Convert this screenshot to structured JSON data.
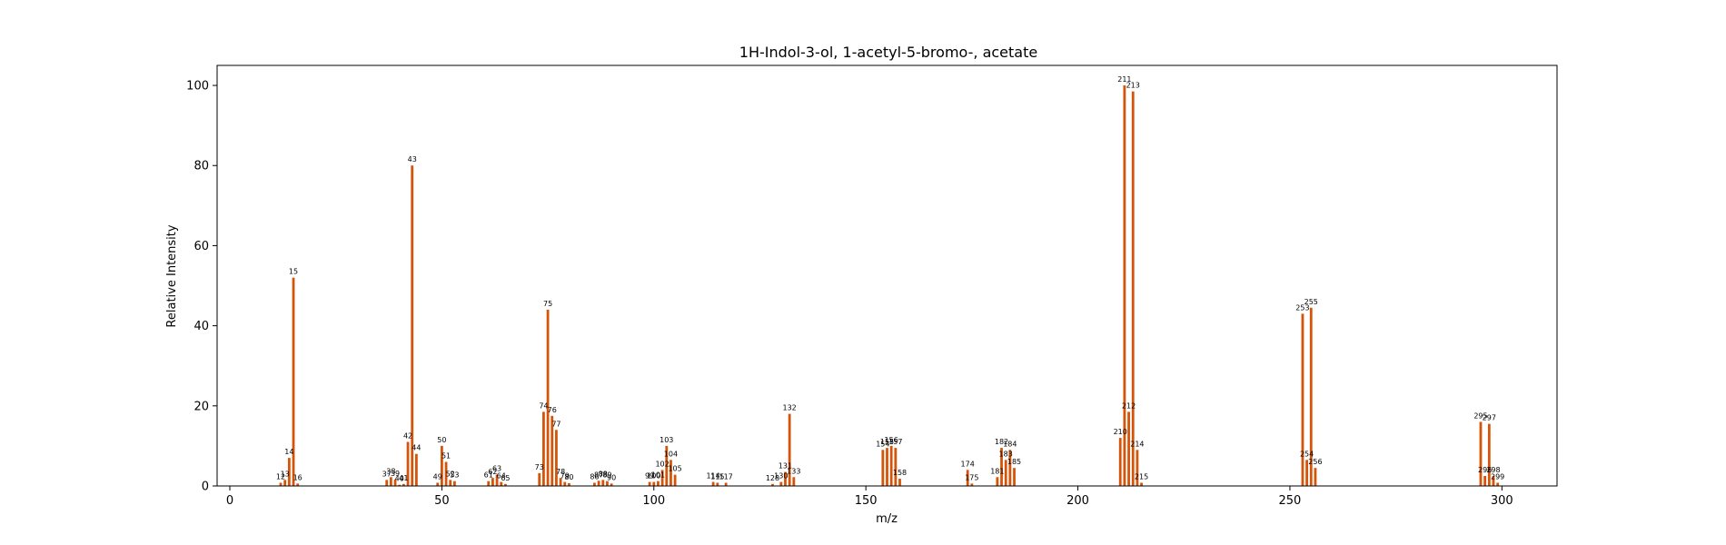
{
  "chart_data": {
    "type": "bar",
    "title": "1H-Indol-3-ol, 1-acetyl-5-bromo-, acetate",
    "xlabel": "m/z",
    "ylabel": "Relative Intensity",
    "xlim": [
      -3,
      313
    ],
    "ylim": [
      0,
      105
    ],
    "x_ticks": [
      0,
      50,
      100,
      150,
      200,
      250,
      300
    ],
    "y_ticks": [
      0,
      20,
      40,
      60,
      80,
      100
    ],
    "bar_color": "#d4550a",
    "grid": false,
    "peaks": [
      {
        "x": 12,
        "y": 0.8,
        "label": "12"
      },
      {
        "x": 13,
        "y": 1.5,
        "label": "13"
      },
      {
        "x": 14,
        "y": 7.0,
        "label": "14"
      },
      {
        "x": 15,
        "y": 52.0,
        "label": "15"
      },
      {
        "x": 16,
        "y": 0.6,
        "label": "16"
      },
      {
        "x": 37,
        "y": 1.5,
        "label": "37"
      },
      {
        "x": 38,
        "y": 2.2,
        "label": "38"
      },
      {
        "x": 39,
        "y": 1.6,
        "label": "39"
      },
      {
        "x": 40,
        "y": 0.3,
        "label": "40"
      },
      {
        "x": 41,
        "y": 0.5,
        "label": "41"
      },
      {
        "x": 42,
        "y": 11.0,
        "label": "42"
      },
      {
        "x": 43,
        "y": 80.0,
        "label": "43"
      },
      {
        "x": 44,
        "y": 8.0,
        "label": "44"
      },
      {
        "x": 49,
        "y": 0.8,
        "label": "49"
      },
      {
        "x": 50,
        "y": 10.0,
        "label": "50"
      },
      {
        "x": 51,
        "y": 6.0,
        "label": "51"
      },
      {
        "x": 52,
        "y": 1.5,
        "label": "52"
      },
      {
        "x": 53,
        "y": 1.2,
        "label": "53"
      },
      {
        "x": 61,
        "y": 1.2,
        "label": "61"
      },
      {
        "x": 62,
        "y": 2.0,
        "label": "62"
      },
      {
        "x": 63,
        "y": 2.8,
        "label": "63"
      },
      {
        "x": 64,
        "y": 1.0,
        "label": "64"
      },
      {
        "x": 65,
        "y": 0.5,
        "label": "65"
      },
      {
        "x": 73,
        "y": 3.2,
        "label": "73"
      },
      {
        "x": 74,
        "y": 18.5,
        "label": "74"
      },
      {
        "x": 75,
        "y": 44.0,
        "label": "75"
      },
      {
        "x": 76,
        "y": 17.5,
        "label": "76"
      },
      {
        "x": 77,
        "y": 14.0,
        "label": "77"
      },
      {
        "x": 78,
        "y": 2.0,
        "label": "78"
      },
      {
        "x": 79,
        "y": 1.0,
        "label": "79"
      },
      {
        "x": 80,
        "y": 0.7,
        "label": "80"
      },
      {
        "x": 86,
        "y": 0.8,
        "label": "86"
      },
      {
        "x": 87,
        "y": 1.3,
        "label": "87"
      },
      {
        "x": 88,
        "y": 1.5,
        "label": "88"
      },
      {
        "x": 89,
        "y": 1.2,
        "label": "89"
      },
      {
        "x": 90,
        "y": 0.6,
        "label": "90"
      },
      {
        "x": 99,
        "y": 1.0,
        "label": "99"
      },
      {
        "x": 100,
        "y": 1.0,
        "label": "100"
      },
      {
        "x": 101,
        "y": 1.2,
        "label": "101"
      },
      {
        "x": 102,
        "y": 4.0,
        "label": "102"
      },
      {
        "x": 103,
        "y": 10.0,
        "label": "103"
      },
      {
        "x": 104,
        "y": 6.5,
        "label": "104"
      },
      {
        "x": 105,
        "y": 2.8,
        "label": "105"
      },
      {
        "x": 114,
        "y": 1.0,
        "label": "114"
      },
      {
        "x": 115,
        "y": 0.8,
        "label": "115"
      },
      {
        "x": 117,
        "y": 0.8,
        "label": "117"
      },
      {
        "x": 128,
        "y": 0.5,
        "label": "128"
      },
      {
        "x": 130,
        "y": 1.0,
        "label": "130"
      },
      {
        "x": 131,
        "y": 3.5,
        "label": "131"
      },
      {
        "x": 132,
        "y": 18.0,
        "label": "132"
      },
      {
        "x": 133,
        "y": 2.2,
        "label": "133"
      },
      {
        "x": 154,
        "y": 9.0,
        "label": "154"
      },
      {
        "x": 155,
        "y": 9.5,
        "label": "155"
      },
      {
        "x": 156,
        "y": 10.0,
        "label": "156"
      },
      {
        "x": 157,
        "y": 9.5,
        "label": "157"
      },
      {
        "x": 158,
        "y": 1.8,
        "label": "158"
      },
      {
        "x": 174,
        "y": 4.0,
        "label": "174"
      },
      {
        "x": 175,
        "y": 0.6,
        "label": "175"
      },
      {
        "x": 181,
        "y": 2.2,
        "label": "181"
      },
      {
        "x": 182,
        "y": 9.5,
        "label": "182"
      },
      {
        "x": 183,
        "y": 6.5,
        "label": "183"
      },
      {
        "x": 184,
        "y": 9.0,
        "label": "184"
      },
      {
        "x": 185,
        "y": 4.5,
        "label": "185"
      },
      {
        "x": 210,
        "y": 12.0,
        "label": "210"
      },
      {
        "x": 211,
        "y": 100.0,
        "label": "211"
      },
      {
        "x": 212,
        "y": 18.5,
        "label": "212"
      },
      {
        "x": 213,
        "y": 98.5,
        "label": "213"
      },
      {
        "x": 214,
        "y": 9.0,
        "label": "214"
      },
      {
        "x": 215,
        "y": 0.8,
        "label": "215"
      },
      {
        "x": 253,
        "y": 43.0,
        "label": "253"
      },
      {
        "x": 254,
        "y": 6.5,
        "label": "254"
      },
      {
        "x": 255,
        "y": 44.5,
        "label": "255"
      },
      {
        "x": 256,
        "y": 4.5,
        "label": "256"
      },
      {
        "x": 295,
        "y": 16.0,
        "label": "295"
      },
      {
        "x": 296,
        "y": 2.5,
        "label": "296"
      },
      {
        "x": 297,
        "y": 15.5,
        "label": "297"
      },
      {
        "x": 298,
        "y": 2.5,
        "label": "298"
      },
      {
        "x": 299,
        "y": 0.8,
        "label": "299"
      }
    ]
  }
}
